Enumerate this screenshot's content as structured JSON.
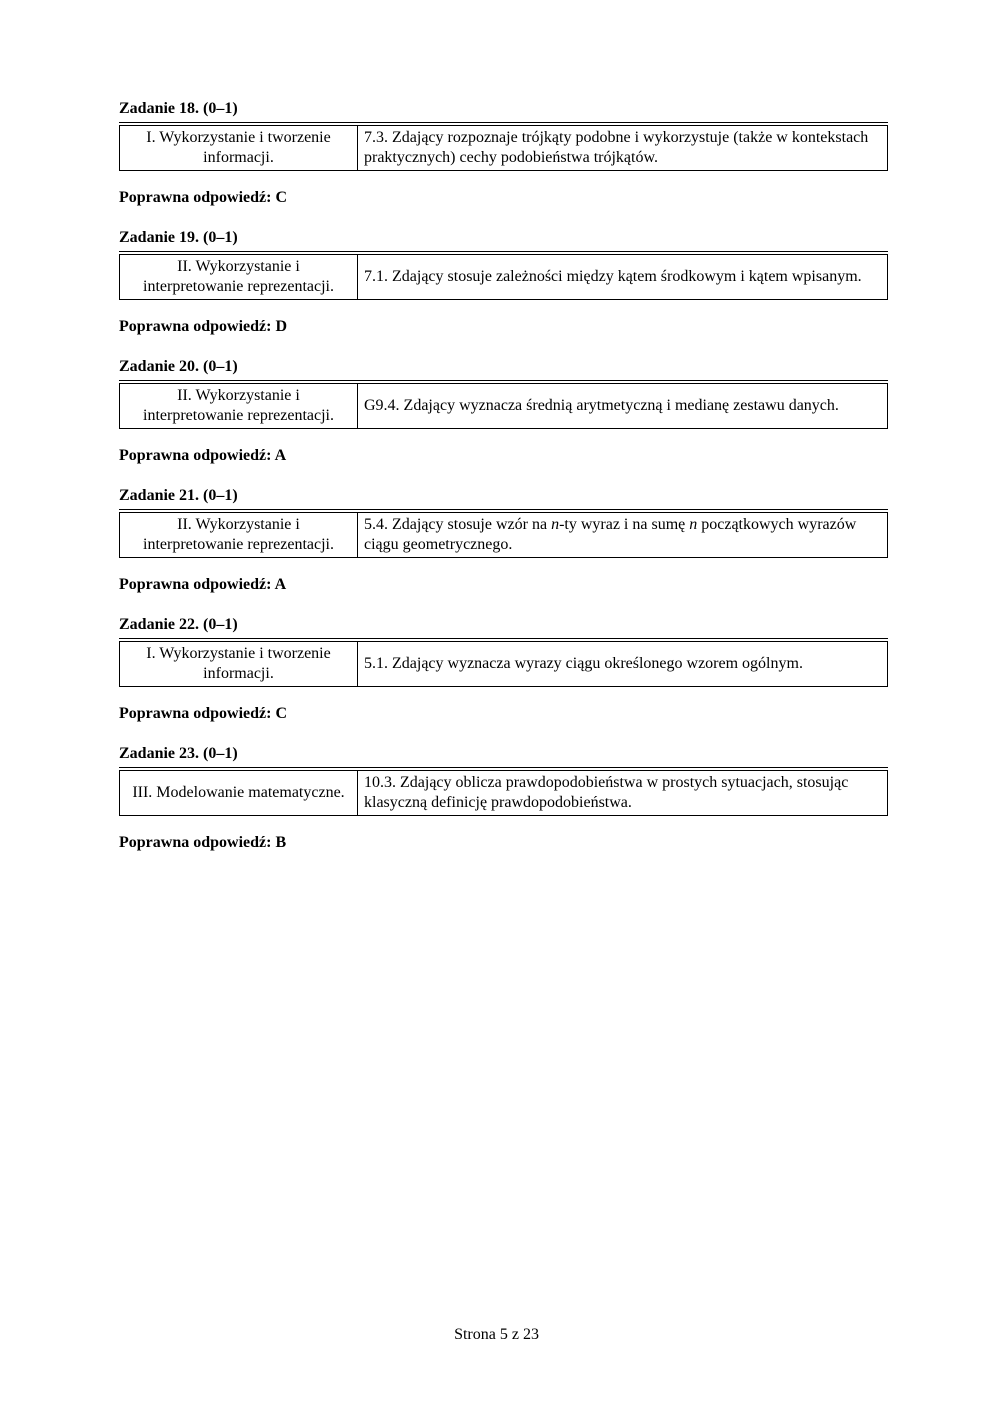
{
  "tasks": [
    {
      "title": "Zadanie 18. (0–1)",
      "left": "I. Wykorzystanie i tworzenie informacji.",
      "right": "7.3. Zdający rozpoznaje trójkąty podobne i wykorzystuje (także w kontekstach praktycznych) cechy podobieństwa trójkątów.",
      "answer": "Poprawna odpowiedź: C"
    },
    {
      "title": "Zadanie 19. (0–1)",
      "left": "II. Wykorzystanie i interpretowanie reprezentacji.",
      "right": "7.1. Zdający stosuje zależności między kątem środkowym i kątem wpisanym.",
      "answer": "Poprawna odpowiedź: D"
    },
    {
      "title": "Zadanie 20. (0–1)",
      "left": "II. Wykorzystanie i interpretowanie reprezentacji.",
      "right": "G9.4. Zdający wyznacza średnią arytmetyczną i medianę zestawu danych.",
      "answer": "Poprawna odpowiedź: A"
    },
    {
      "title": "Zadanie 21. (0–1)",
      "left": "II. Wykorzystanie i interpretowanie reprezentacji.",
      "right_parts": [
        {
          "t": "5.4. Zdający stosuje wzór na "
        },
        {
          "t": "n",
          "italic": true
        },
        {
          "t": "-ty wyraz i na sumę "
        },
        {
          "t": "n",
          "italic": true
        },
        {
          "t": " początkowych wyrazów ciągu geometrycznego."
        }
      ],
      "answer": "Poprawna odpowiedź: A"
    },
    {
      "title": "Zadanie 22. (0–1)",
      "left": "I. Wykorzystanie i tworzenie informacji.",
      "right": "5.1. Zdający wyznacza wyrazy ciągu określonego wzorem ogólnym.",
      "answer": "Poprawna odpowiedź: C"
    },
    {
      "title": "Zadanie 23. (0–1)",
      "left": "III. Modelowanie matematyczne.",
      "right": "10.3. Zdający oblicza prawdopodobieństwa w prostych sytuacjach, stosując klasyczną definicję prawdopodobieństwa.",
      "answer": "Poprawna odpowiedź: B"
    }
  ],
  "footer": "Strona 5 z 23"
}
